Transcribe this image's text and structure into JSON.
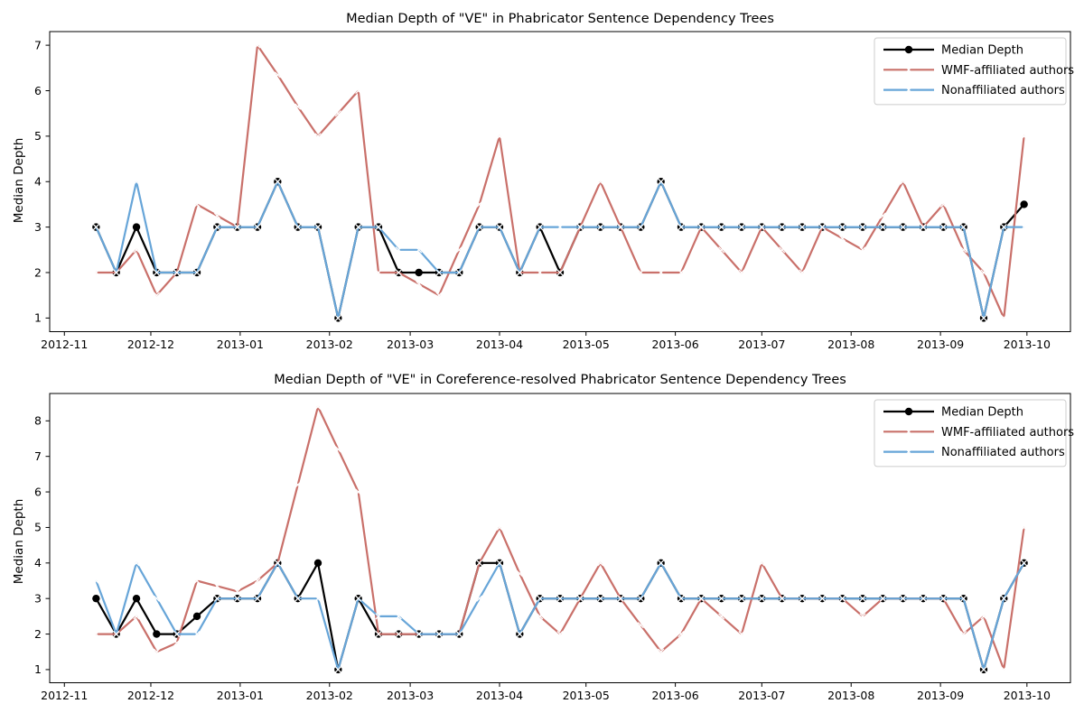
{
  "page": {
    "background": "#ffffff",
    "figure_type": "matplotlib-style line charts, 2 stacked subplots"
  },
  "chart_data": [
    {
      "type": "line",
      "title": "Median Depth of \"VE\" in Phabricator Sentence Dependency Trees",
      "ylabel": "Median Depth",
      "xlabel": "",
      "grid": false,
      "legend_position": "upper right",
      "x_weeks": [
        "2012-11-12",
        "2012-11-19",
        "2012-11-26",
        "2012-12-03",
        "2012-12-10",
        "2012-12-17",
        "2012-12-24",
        "2012-12-31",
        "2013-01-07",
        "2013-01-14",
        "2013-01-21",
        "2013-01-28",
        "2013-02-04",
        "2013-02-11",
        "2013-02-18",
        "2013-02-25",
        "2013-03-04",
        "2013-03-11",
        "2013-03-18",
        "2013-03-25",
        "2013-04-01",
        "2013-04-08",
        "2013-04-15",
        "2013-04-22",
        "2013-04-29",
        "2013-05-06",
        "2013-05-13",
        "2013-05-20",
        "2013-05-27",
        "2013-06-03",
        "2013-06-10",
        "2013-06-17",
        "2013-06-24",
        "2013-07-01",
        "2013-07-08",
        "2013-07-15",
        "2013-07-22",
        "2013-07-29",
        "2013-08-05",
        "2013-08-12",
        "2013-08-19",
        "2013-08-26",
        "2013-09-02",
        "2013-09-09",
        "2013-09-16",
        "2013-09-23",
        "2013-09-30"
      ],
      "xtick_labels": [
        "2012-11",
        "2012-12",
        "2013-01",
        "2013-02",
        "2013-03",
        "2013-04",
        "2013-05",
        "2013-06",
        "2013-07",
        "2013-08",
        "2013-09",
        "2013-10"
      ],
      "xtick_days": [
        -11,
        19,
        50,
        81,
        109,
        140,
        170,
        201,
        231,
        262,
        293,
        323
      ],
      "xlim_days": [
        -16.1,
        338.1
      ],
      "yticks": [
        1,
        2,
        3,
        4,
        5,
        6,
        7
      ],
      "ylim": [
        0.7,
        7.3
      ],
      "series": [
        {
          "name": "Median Depth",
          "color": "#000000",
          "marker": "circle",
          "values": [
            3,
            2,
            3,
            2,
            2,
            2,
            3,
            3,
            3,
            4,
            3,
            3,
            1,
            3,
            3,
            2,
            2,
            2,
            2,
            3,
            3,
            2,
            3,
            2,
            3,
            3,
            3,
            3,
            4,
            3,
            3,
            3,
            3,
            3,
            3,
            3,
            3,
            3,
            3,
            3,
            3,
            3,
            3,
            3,
            1,
            3,
            3.5
          ]
        },
        {
          "name": "WMF-affiliated authors",
          "color": "#c9706a",
          "marker": "x-white",
          "values": [
            2,
            2,
            2.5,
            1.5,
            2,
            3.5,
            3.25,
            3,
            7,
            6.35,
            5.65,
            5,
            5.5,
            6,
            2,
            2,
            1.75,
            1.5,
            2.5,
            3.5,
            5,
            2,
            2,
            2,
            3,
            4,
            3,
            2,
            2,
            2,
            3,
            2.5,
            2,
            3,
            2.5,
            2,
            3,
            2.75,
            2.5,
            3.25,
            4,
            3,
            3.5,
            2.5,
            2,
            1,
            5
          ]
        },
        {
          "name": "Nonaffiliated authors",
          "color": "#67a5d8",
          "marker": "x-white",
          "values": [
            3,
            2,
            4,
            2,
            2,
            2,
            3,
            3,
            3,
            4,
            3,
            3,
            1,
            3,
            3,
            2.5,
            2.5,
            2,
            2,
            3,
            3,
            2,
            3,
            3,
            3,
            3,
            3,
            3,
            4,
            3,
            3,
            3,
            3,
            3,
            3,
            3,
            3,
            3,
            3,
            3,
            3,
            3,
            3,
            3,
            1,
            3,
            3
          ]
        }
      ]
    },
    {
      "type": "line",
      "title": "Median Depth of \"VE\" in Coreference-resolved Phabricator Sentence Dependency Trees",
      "ylabel": "Median Depth",
      "xlabel": "",
      "grid": false,
      "legend_position": "upper right",
      "x_weeks": [
        "2012-11-12",
        "2012-11-19",
        "2012-11-26",
        "2012-12-03",
        "2012-12-10",
        "2012-12-17",
        "2012-12-24",
        "2012-12-31",
        "2013-01-07",
        "2013-01-14",
        "2013-01-21",
        "2013-01-28",
        "2013-02-04",
        "2013-02-11",
        "2013-02-18",
        "2013-02-25",
        "2013-03-04",
        "2013-03-11",
        "2013-03-18",
        "2013-03-25",
        "2013-04-01",
        "2013-04-08",
        "2013-04-15",
        "2013-04-22",
        "2013-04-29",
        "2013-05-06",
        "2013-05-13",
        "2013-05-20",
        "2013-05-27",
        "2013-06-03",
        "2013-06-10",
        "2013-06-17",
        "2013-06-24",
        "2013-07-01",
        "2013-07-08",
        "2013-07-15",
        "2013-07-22",
        "2013-07-29",
        "2013-08-05",
        "2013-08-12",
        "2013-08-19",
        "2013-08-26",
        "2013-09-02",
        "2013-09-09",
        "2013-09-16",
        "2013-09-23",
        "2013-09-30"
      ],
      "xtick_labels": [
        "2012-11",
        "2012-12",
        "2013-01",
        "2013-02",
        "2013-03",
        "2013-04",
        "2013-05",
        "2013-06",
        "2013-07",
        "2013-08",
        "2013-09",
        "2013-10"
      ],
      "xtick_days": [
        -11,
        19,
        50,
        81,
        109,
        140,
        170,
        201,
        231,
        262,
        293,
        323
      ],
      "xlim_days": [
        -16.1,
        338.1
      ],
      "yticks": [
        1,
        2,
        3,
        4,
        5,
        6,
        7,
        8
      ],
      "ylim": [
        0.63,
        8.77
      ],
      "series": [
        {
          "name": "Median Depth",
          "color": "#000000",
          "marker": "circle",
          "values": [
            3,
            2,
            3,
            2,
            2,
            2.5,
            3,
            3,
            3,
            4,
            3,
            4,
            1,
            3,
            2,
            2,
            2,
            2,
            2,
            4,
            4,
            2,
            3,
            3,
            3,
            3,
            3,
            3,
            4,
            3,
            3,
            3,
            3,
            3,
            3,
            3,
            3,
            3,
            3,
            3,
            3,
            3,
            3,
            3,
            1,
            3,
            4
          ]
        },
        {
          "name": "WMF-affiliated authors",
          "color": "#c9706a",
          "marker": "x-white",
          "values": [
            2,
            2,
            2.5,
            1.5,
            1.75,
            3.5,
            3.35,
            3.2,
            3.5,
            4,
            6.2,
            8.4,
            7.2,
            6,
            2,
            2,
            2,
            2,
            2,
            4,
            5,
            3.7,
            2.5,
            2,
            3,
            4,
            3,
            2.25,
            1.5,
            2,
            3,
            2.5,
            2,
            4,
            3,
            3,
            3,
            3,
            2.5,
            3,
            3,
            3,
            3,
            2,
            2.5,
            1,
            5
          ]
        },
        {
          "name": "Nonaffiliated authors",
          "color": "#67a5d8",
          "marker": "x-white",
          "values": [
            3.5,
            2,
            4,
            3,
            2,
            2,
            3,
            3,
            3,
            4,
            3,
            3,
            1,
            3,
            2.5,
            2.5,
            2,
            2,
            2,
            3,
            4,
            2,
            3,
            3,
            3,
            3,
            3,
            3,
            4,
            3,
            3,
            3,
            3,
            3,
            3,
            3,
            3,
            3,
            3,
            3,
            3,
            3,
            3,
            3,
            1,
            3,
            4
          ]
        }
      ]
    }
  ]
}
